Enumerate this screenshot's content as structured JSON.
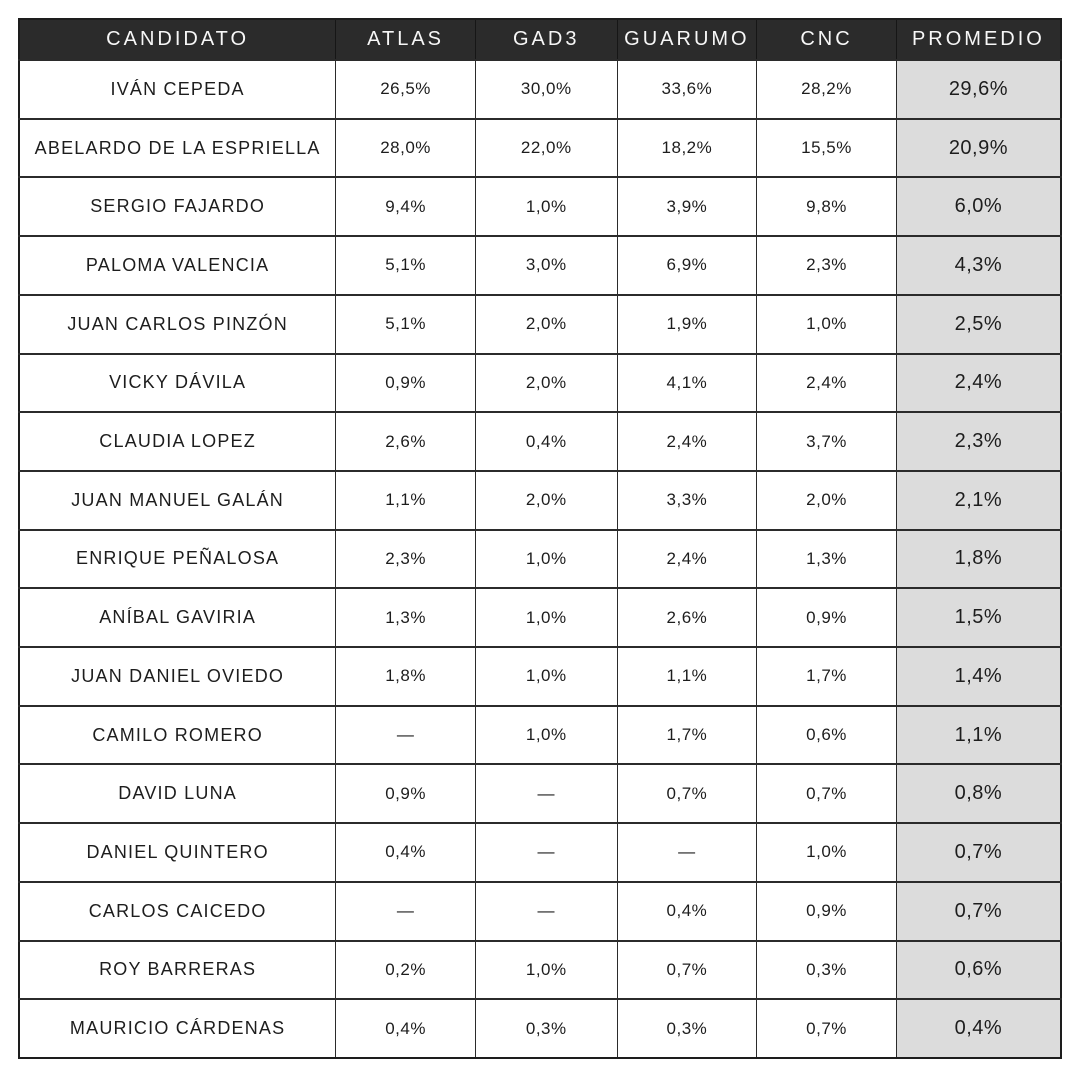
{
  "table": {
    "columns": [
      "CANDIDATO",
      "ATLAS",
      "GAD3",
      "GUARUMO",
      "CNC",
      "PROMEDIO"
    ],
    "empty_marker": "—",
    "rows": [
      {
        "candidate": "IVÁN CEPEDA",
        "values": [
          "26,5%",
          "30,0%",
          "33,6%",
          "28,2%",
          "29,6%"
        ]
      },
      {
        "candidate": "ABELARDO DE LA ESPRIELLA",
        "values": [
          "28,0%",
          "22,0%",
          "18,2%",
          "15,5%",
          "20,9%"
        ]
      },
      {
        "candidate": "SERGIO FAJARDO",
        "values": [
          "9,4%",
          "1,0%",
          "3,9%",
          "9,8%",
          "6,0%"
        ]
      },
      {
        "candidate": "PALOMA VALENCIA",
        "values": [
          "5,1%",
          "3,0%",
          "6,9%",
          "2,3%",
          "4,3%"
        ]
      },
      {
        "candidate": "JUAN CARLOS PINZÓN",
        "values": [
          "5,1%",
          "2,0%",
          "1,9%",
          "1,0%",
          "2,5%"
        ]
      },
      {
        "candidate": "VICKY DÁVILA",
        "values": [
          "0,9%",
          "2,0%",
          "4,1%",
          "2,4%",
          "2,4%"
        ]
      },
      {
        "candidate": "CLAUDIA LOPEZ",
        "values": [
          "2,6%",
          "0,4%",
          "2,4%",
          "3,7%",
          "2,3%"
        ]
      },
      {
        "candidate": "JUAN MANUEL GALÁN",
        "values": [
          "1,1%",
          "2,0%",
          "3,3%",
          "2,0%",
          "2,1%"
        ]
      },
      {
        "candidate": "ENRIQUE PEÑALOSA",
        "values": [
          "2,3%",
          "1,0%",
          "2,4%",
          "1,3%",
          "1,8%"
        ]
      },
      {
        "candidate": "ANÍBAL GAVIRIA",
        "values": [
          "1,3%",
          "1,0%",
          "2,6%",
          "0,9%",
          "1,5%"
        ]
      },
      {
        "candidate": "JUAN DANIEL OVIEDO",
        "values": [
          "1,8%",
          "1,0%",
          "1,1%",
          "1,7%",
          "1,4%"
        ]
      },
      {
        "candidate": "CAMILO ROMERO",
        "values": [
          "—",
          "1,0%",
          "1,7%",
          "0,6%",
          "1,1%"
        ]
      },
      {
        "candidate": "DAVID LUNA",
        "values": [
          "0,9%",
          "—",
          "0,7%",
          "0,7%",
          "0,8%"
        ]
      },
      {
        "candidate": "DANIEL QUINTERO",
        "values": [
          "0,4%",
          "—",
          "—",
          "1,0%",
          "0,7%"
        ]
      },
      {
        "candidate": "CARLOS CAICEDO",
        "values": [
          "—",
          "—",
          "0,4%",
          "0,9%",
          "0,7%"
        ]
      },
      {
        "candidate": "ROY BARRERAS",
        "values": [
          "0,2%",
          "1,0%",
          "0,7%",
          "0,3%",
          "0,6%"
        ]
      },
      {
        "candidate": "MAURICIO CÁRDENAS",
        "values": [
          "0,4%",
          "0,3%",
          "0,3%",
          "0,7%",
          "0,4%"
        ]
      }
    ]
  },
  "chart_data": {
    "type": "table",
    "title": "",
    "columns": [
      "CANDIDATO",
      "ATLAS",
      "GAD3",
      "GUARUMO",
      "CNC",
      "PROMEDIO"
    ],
    "unit": "percent",
    "missing_marker": "—",
    "rows": [
      [
        "IVÁN CEPEDA",
        26.5,
        30.0,
        33.6,
        28.2,
        29.6
      ],
      [
        "ABELARDO DE LA ESPRIELLA",
        28.0,
        22.0,
        18.2,
        15.5,
        20.9
      ],
      [
        "SERGIO FAJARDO",
        9.4,
        1.0,
        3.9,
        9.8,
        6.0
      ],
      [
        "PALOMA VALENCIA",
        5.1,
        3.0,
        6.9,
        2.3,
        4.3
      ],
      [
        "JUAN CARLOS PINZÓN",
        5.1,
        2.0,
        1.9,
        1.0,
        2.5
      ],
      [
        "VICKY DÁVILA",
        0.9,
        2.0,
        4.1,
        2.4,
        2.4
      ],
      [
        "CLAUDIA LOPEZ",
        2.6,
        0.4,
        2.4,
        3.7,
        2.3
      ],
      [
        "JUAN MANUEL GALÁN",
        1.1,
        2.0,
        3.3,
        2.0,
        2.1
      ],
      [
        "ENRIQUE PEÑALOSA",
        2.3,
        1.0,
        2.4,
        1.3,
        1.8
      ],
      [
        "ANÍBAL GAVIRIA",
        1.3,
        1.0,
        2.6,
        0.9,
        1.5
      ],
      [
        "JUAN DANIEL OVIEDO",
        1.8,
        1.0,
        1.1,
        1.7,
        1.4
      ],
      [
        "CAMILO ROMERO",
        null,
        1.0,
        1.7,
        0.6,
        1.1
      ],
      [
        "DAVID LUNA",
        0.9,
        null,
        0.7,
        0.7,
        0.8
      ],
      [
        "DANIEL QUINTERO",
        0.4,
        null,
        null,
        1.0,
        0.7
      ],
      [
        "CARLOS CAICEDO",
        null,
        null,
        0.4,
        0.9,
        0.7
      ],
      [
        "ROY BARRERAS",
        0.2,
        1.0,
        0.7,
        0.3,
        0.6
      ],
      [
        "MAURICIO CÁRDENAS",
        0.4,
        0.3,
        0.3,
        0.7,
        0.4
      ]
    ]
  },
  "colors": {
    "header_bg": "#2b2b2b",
    "header_text": "#f7f7f7",
    "promedio_bg": "#dcdcdc",
    "border": "#2b2b2b",
    "text": "#1d1d1d",
    "background": "#ffffff"
  }
}
